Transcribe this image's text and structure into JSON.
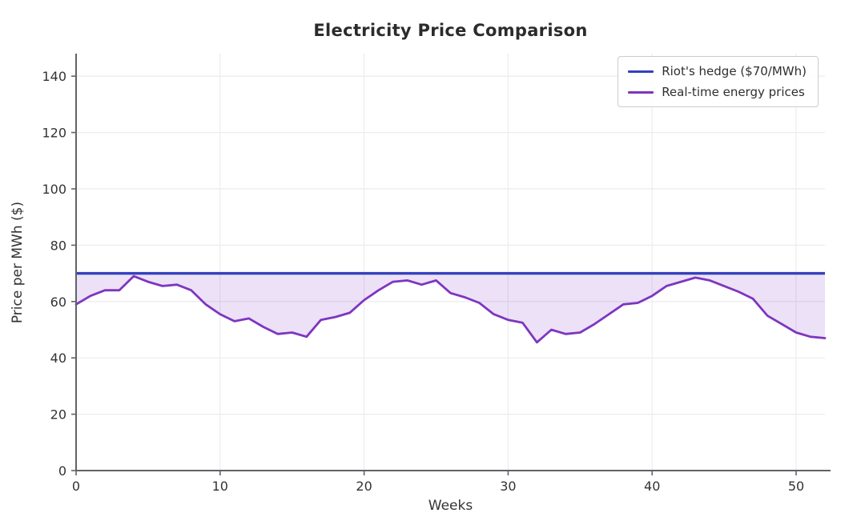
{
  "chart_data": {
    "type": "line",
    "title": "Electricity Price Comparison",
    "xlabel": "Weeks",
    "ylabel": "Price per MWh ($)",
    "xlim": [
      0,
      52
    ],
    "ylim": [
      0,
      148
    ],
    "xticks": [
      0,
      10,
      20,
      30,
      40,
      50
    ],
    "yticks": [
      0,
      20,
      40,
      60,
      80,
      100,
      120,
      140
    ],
    "grid": true,
    "grid_color": "#ececec",
    "spine_color": "#5f6368",
    "legend_position": "upper right",
    "series": [
      {
        "name": "Riot's hedge ($70/MWh)",
        "type": "hline",
        "value": 70,
        "color": "#3340bd"
      },
      {
        "name": "Real-time energy prices",
        "type": "line",
        "color": "#7e35c0",
        "fill_between_hedge": true,
        "fill_color": "rgba(126, 53, 192, 0.15)",
        "x": [
          0,
          1,
          2,
          3,
          4,
          5,
          6,
          7,
          8,
          9,
          10,
          11,
          12,
          13,
          14,
          15,
          16,
          17,
          18,
          19,
          20,
          21,
          22,
          23,
          24,
          25,
          26,
          27,
          28,
          29,
          30,
          31,
          32,
          33,
          34,
          35,
          36,
          37,
          38,
          39,
          40,
          41,
          42,
          43,
          44,
          45,
          46,
          47,
          48,
          49,
          50,
          51,
          52
        ],
        "values": [
          59,
          62,
          64,
          64,
          69,
          67,
          65.5,
          66,
          64,
          59,
          55.5,
          53,
          54,
          51,
          48.5,
          49,
          47.5,
          53.5,
          54.5,
          56,
          60.5,
          64,
          67,
          67.5,
          66,
          67.5,
          63,
          61.5,
          59.5,
          55.5,
          53.5,
          52.5,
          45.5,
          50,
          48.5,
          49,
          52,
          55.5,
          59,
          59.5,
          62,
          65.5,
          67,
          68.5,
          67.5,
          65.5,
          63.5,
          61,
          55,
          52,
          49,
          47.5,
          47
        ]
      }
    ]
  }
}
